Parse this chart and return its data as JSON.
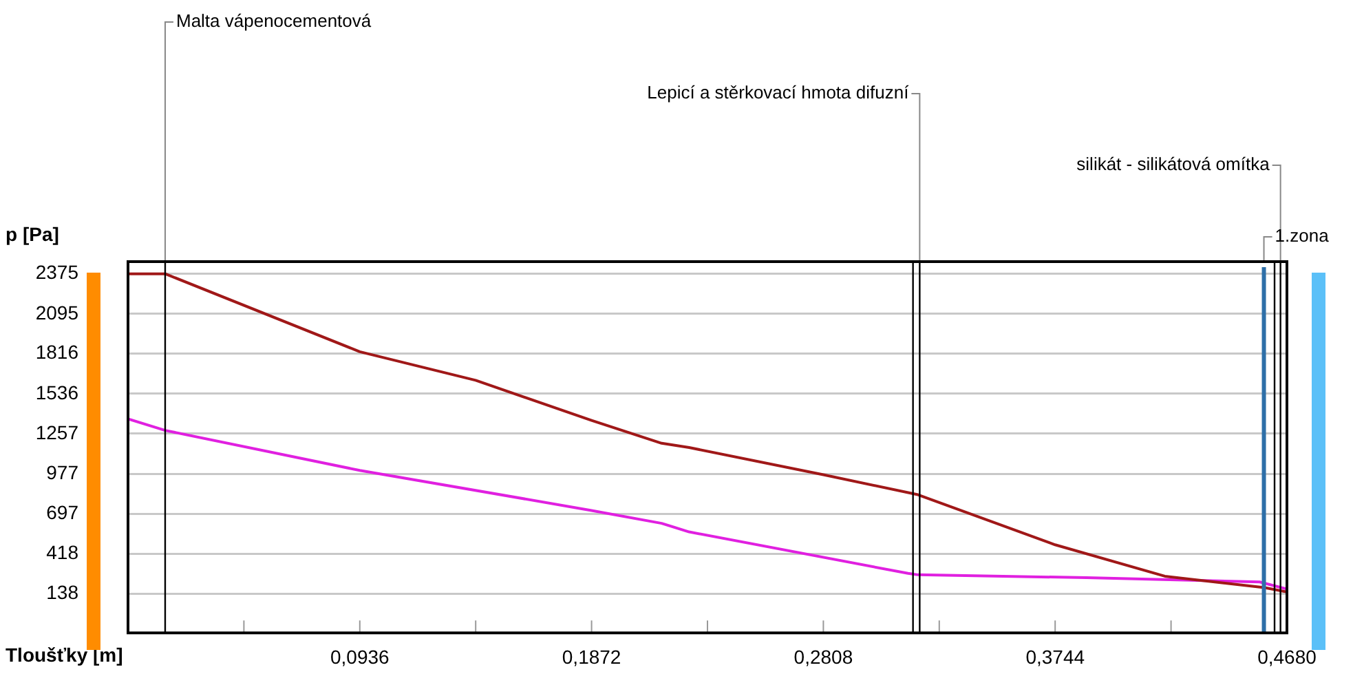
{
  "chart_data": {
    "type": "line",
    "xlabel": "Tloušťky [m]",
    "ylabel": "p [Pa]",
    "xlim": [
      0,
      0.468
    ],
    "ylim": [
      -136,
      2460
    ],
    "xticks": [
      {
        "value": 0.0468,
        "label": null
      },
      {
        "value": 0.0936,
        "label": "0,0936"
      },
      {
        "value": 0.1404,
        "label": null
      },
      {
        "value": 0.1872,
        "label": "0,1872"
      },
      {
        "value": 0.234,
        "label": null
      },
      {
        "value": 0.2808,
        "label": "0,2808"
      },
      {
        "value": 0.3276,
        "label": null
      },
      {
        "value": 0.3744,
        "label": "0,3744"
      },
      {
        "value": 0.4212,
        "label": null
      },
      {
        "value": 0.468,
        "label": "0,4680"
      }
    ],
    "yticks": [
      138,
      418,
      697,
      977,
      1257,
      1536,
      1816,
      2095,
      2375
    ],
    "grid": "y",
    "legend": false,
    "marker": "none",
    "line_style": "solid",
    "series": [
      {
        "color": "#a01818",
        "x": [
          0,
          0.015,
          0.0936,
          0.1404,
          0.1872,
          0.2155,
          0.2266,
          0.2808,
          0.319,
          0.3744,
          0.4187,
          0.459,
          0.468
        ],
        "values": [
          2375,
          2375,
          1830,
          1630,
          1350,
          1190,
          1160,
          970,
          830,
          480,
          260,
          180,
          150
        ]
      },
      {
        "color": "#e020e0",
        "x": [
          0,
          0.015,
          0.0936,
          0.1872,
          0.2155,
          0.2266,
          0.315,
          0.319,
          0.387,
          0.457,
          0.468
        ],
        "values": [
          1360,
          1280,
          1000,
          720,
          630,
          570,
          280,
          270,
          250,
          220,
          170
        ]
      }
    ],
    "ref_lines": [
      {
        "axis": "x",
        "value": 0.015,
        "color": "#000000",
        "label": "Malta vápenocementová"
      },
      {
        "axis": "x",
        "value": 0.317,
        "color": "#000000"
      },
      {
        "axis": "x",
        "value": 0.3197,
        "color": "#000000",
        "label": "Lepicí a stěrkovací hmota difuzní"
      },
      {
        "axis": "x",
        "value": 0.463,
        "color": "#000000"
      },
      {
        "axis": "x",
        "value": 0.4654,
        "color": "#000000",
        "label": "silikát - silikátová omítka"
      },
      {
        "axis": "x",
        "value": 0.4587,
        "label": "1.zona",
        "color": "#2e6fa8"
      }
    ]
  }
}
